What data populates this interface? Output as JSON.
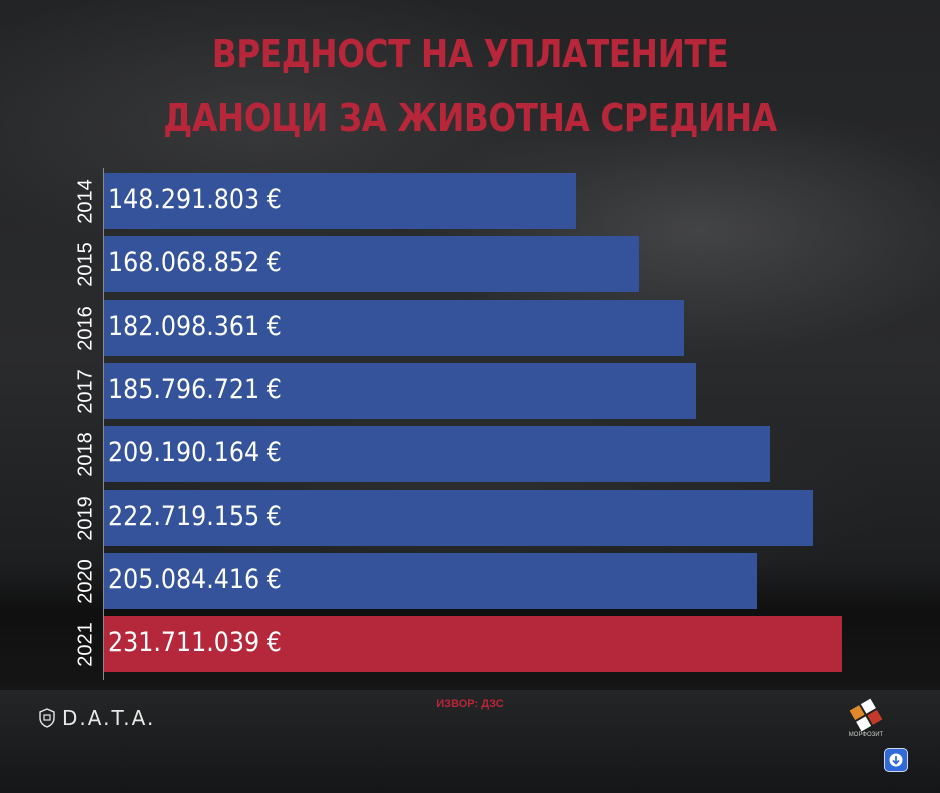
{
  "title_lines": [
    "ВРЕДНОСТ НА УПЛАТЕНИТЕ",
    "ДАНОЦИ ЗА ЖИВОТНА СРЕДИНА"
  ],
  "source": "ИЗВОР: ДЗС",
  "logo_left": {
    "name": "D.A.T.A."
  },
  "logo_right": {
    "name": "МОРФОЗИТ"
  },
  "colors": {
    "bar": "#34539a",
    "highlight": "#b5283b",
    "title": "#b8263a"
  },
  "icons": [
    "shield-icon",
    "down-arrow-icon"
  ],
  "chart_data": {
    "type": "bar",
    "orientation": "horizontal",
    "categories": [
      "2014",
      "2015",
      "2016",
      "2017",
      "2018",
      "2019",
      "2020",
      "2021"
    ],
    "values": [
      148291803,
      168068852,
      182098361,
      185796721,
      209190164,
      222719155,
      205084416,
      231711039
    ],
    "labels": [
      "148.291.803 €",
      "168.068.852 €",
      "182.098.361 €",
      "185.796.721 €",
      "209.190.164 €",
      "222.719.155 €",
      "205.084.416 €",
      "231.711.039 €"
    ],
    "highlight_index": 7,
    "unit": "€",
    "grid": false,
    "legend": "none"
  }
}
